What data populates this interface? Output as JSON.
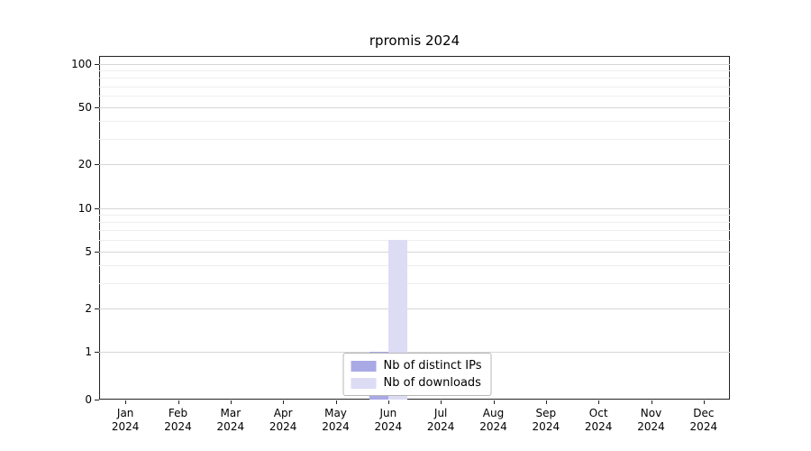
{
  "chart_data": {
    "type": "bar",
    "title": "rpromis 2024",
    "categories": [
      "Jan",
      "Feb",
      "Mar",
      "Apr",
      "May",
      "Jun",
      "Jul",
      "Aug",
      "Sep",
      "Oct",
      "Nov",
      "Dec"
    ],
    "year_label": "2024",
    "series": [
      {
        "name": "Nb of distinct IPs",
        "color": "#a9a9e6",
        "values": [
          0,
          0,
          0,
          0,
          0,
          1,
          0,
          0,
          0,
          0,
          0,
          0
        ]
      },
      {
        "name": "Nb of downloads",
        "color": "#dcdcf5",
        "values": [
          0,
          0,
          0,
          0,
          0,
          6,
          0,
          0,
          0,
          0,
          0,
          0
        ]
      }
    ],
    "y_ticks": [
      0,
      1,
      2,
      5,
      10,
      20,
      50,
      100
    ],
    "y_minor_ticks": [
      3,
      4,
      6,
      7,
      8,
      9,
      30,
      40,
      60,
      70,
      80,
      90
    ],
    "scale": "symlog",
    "ylim": [
      0,
      100
    ],
    "grid": true,
    "legend_position": "bottom-center"
  }
}
